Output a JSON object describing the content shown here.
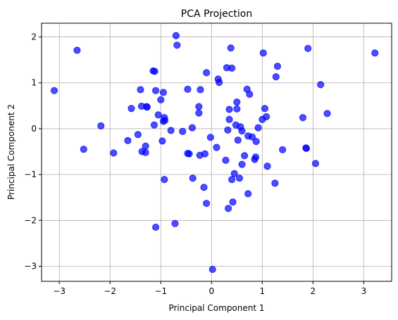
{
  "chart_data": {
    "type": "scatter",
    "title": "PCA Projection",
    "xlabel": "Principal Component 1",
    "ylabel": "Principal Component 2",
    "xlim": [
      -3.35,
      3.55
    ],
    "ylim": [
      -3.33,
      2.3
    ],
    "xticks": [
      -3,
      -2,
      -1,
      0,
      1,
      2,
      3
    ],
    "yticks": [
      -3,
      -2,
      -1,
      0,
      1,
      2
    ],
    "xtick_labels": [
      "−3",
      "−2",
      "−1",
      "0",
      "1",
      "2",
      "3"
    ],
    "ytick_labels": [
      "−3",
      "−2",
      "−1",
      "0",
      "1",
      "2"
    ],
    "grid": true,
    "colors": {
      "points": "#0000ff",
      "point_edge": "#0000ff",
      "grid": "#b0b0b0",
      "axis": "#000000",
      "text": "#000000",
      "background": "#ffffff"
    },
    "point_opacity": 0.7,
    "series": [
      {
        "x": [
          -3.1,
          -2.65,
          -2.52,
          -2.18,
          -1.93,
          -1.65,
          -1.58,
          -1.45,
          -1.4,
          -1.38,
          -1.37,
          -1.3,
          -1.3,
          -1.28,
          -1.27,
          -1.15,
          -1.13,
          -1.12,
          -1.1,
          -1.1,
          -1.05,
          -1.0,
          -0.97,
          -0.95,
          -0.95,
          -0.93,
          -0.93,
          -0.92,
          -0.8,
          -0.72,
          -0.7,
          -0.68,
          -0.57,
          -0.47,
          -0.47,
          -0.44,
          -0.38,
          -0.37,
          -0.25,
          -0.25,
          -0.23,
          -0.22,
          -0.15,
          -0.13,
          -0.1,
          -0.1,
          -0.02,
          0.02,
          0.1,
          0.13,
          0.15,
          0.28,
          0.3,
          0.32,
          0.33,
          0.35,
          0.35,
          0.38,
          0.4,
          0.4,
          0.42,
          0.45,
          0.48,
          0.5,
          0.5,
          0.52,
          0.55,
          0.57,
          0.6,
          0.6,
          0.65,
          0.7,
          0.72,
          0.72,
          0.75,
          0.8,
          0.85,
          0.87,
          0.88,
          0.92,
          1.0,
          1.02,
          1.05,
          1.08,
          1.1,
          1.25,
          1.27,
          1.3,
          1.4,
          1.8,
          1.86,
          1.87,
          1.9,
          2.05,
          2.15,
          2.28,
          3.22
        ],
        "y": [
          0.83,
          1.71,
          -0.45,
          0.06,
          -0.53,
          -0.26,
          0.44,
          -0.13,
          0.85,
          0.49,
          -0.5,
          -0.38,
          -0.52,
          0.48,
          0.47,
          1.26,
          0.08,
          1.25,
          0.83,
          -2.15,
          0.3,
          0.63,
          -0.27,
          0.79,
          0.16,
          -1.11,
          0.24,
          0.18,
          -0.04,
          -2.07,
          2.03,
          1.82,
          -0.06,
          0.86,
          -0.54,
          -0.55,
          0.02,
          -1.08,
          0.34,
          0.48,
          -0.58,
          0.85,
          -1.28,
          -0.55,
          1.22,
          -1.63,
          -0.19,
          -3.07,
          -0.41,
          1.08,
          1.01,
          -0.69,
          1.33,
          -0.03,
          -1.74,
          0.42,
          0.2,
          1.76,
          -1.11,
          1.32,
          -1.6,
          -0.98,
          0.08,
          0.58,
          0.43,
          -0.25,
          -1.08,
          0.04,
          -0.05,
          -0.78,
          -0.59,
          0.86,
          -0.16,
          -1.42,
          0.75,
          -0.18,
          -0.67,
          -0.62,
          -0.28,
          0.02,
          0.2,
          1.65,
          0.44,
          0.26,
          -0.82,
          -1.19,
          1.13,
          1.36,
          -0.46,
          0.24,
          -0.42,
          -0.43,
          1.75,
          -0.76,
          0.96,
          0.33,
          1.65
        ]
      }
    ]
  }
}
